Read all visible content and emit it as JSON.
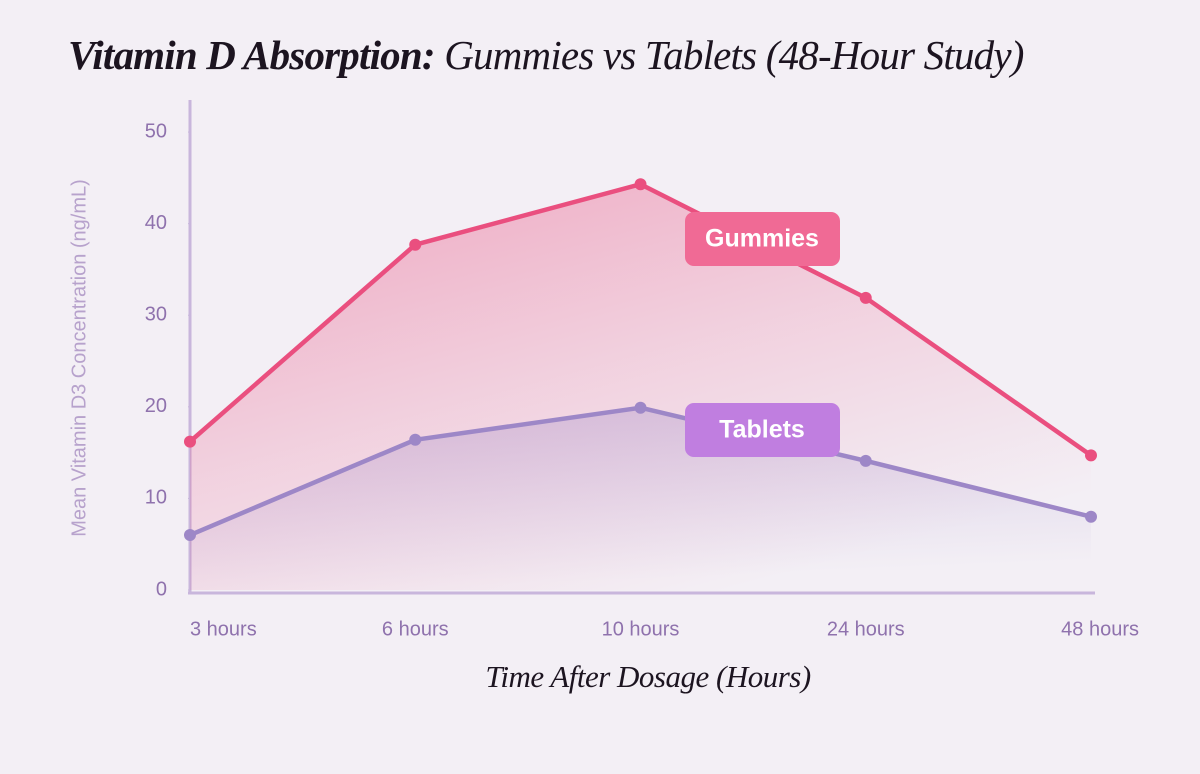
{
  "chart_data": {
    "type": "line",
    "title_parts": [
      "Vitamin D Absorption:",
      "Gummies vs Tablets (48-Hour Study)"
    ],
    "x_label": "Time After Dosage (Hours)",
    "y_label": "Mean Vitamin D3 Concentration (ng/mL)",
    "categories": [
      "3 hours",
      "6 hours",
      "10 hours",
      "24 hours",
      "48 hours"
    ],
    "series": [
      {
        "name": "Gummies",
        "color": "#ea4f7f",
        "label_color": "#f06a95",
        "values": [
          16.2,
          37.7,
          44.3,
          31.9,
          14.7
        ]
      },
      {
        "name": "Tablets",
        "color": "#9d87c7",
        "label_color": "#c07ee0",
        "values": [
          6.0,
          16.4,
          19.9,
          14.1,
          8.0
        ]
      }
    ],
    "ylim": [
      0,
      53.5
    ],
    "yticks": [
      0,
      10,
      20,
      30,
      40,
      50
    ]
  }
}
